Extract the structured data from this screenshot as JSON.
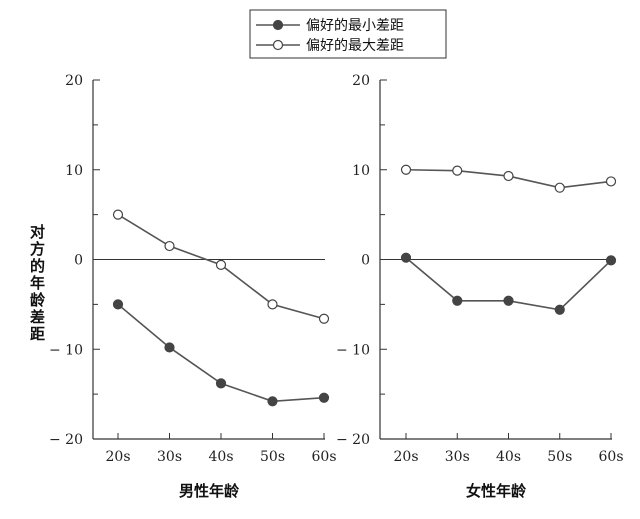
{
  "legend": {
    "min_label": "偏好的最小差距",
    "max_label": "偏好的最大差距"
  },
  "ylabel": "对方的年龄差距",
  "colors": {
    "line": "#555555",
    "marker_fill_filled": "#444444",
    "marker_fill_open": "#ffffff",
    "axis": "#333333"
  },
  "chart_data": [
    {
      "type": "line",
      "xlabel": "男性年龄",
      "ylabel": "对方的年龄差距",
      "categories": [
        "20s",
        "30s",
        "40s",
        "50s",
        "60s"
      ],
      "ylim": [
        -20,
        20
      ],
      "yticks": [
        -20,
        -10,
        0,
        10,
        20
      ],
      "ytick_labels": [
        "− 20",
        "− 10",
        "0",
        "10",
        "20"
      ],
      "series": [
        {
          "name": "偏好的最小差距",
          "marker": "filled",
          "values": [
            -5,
            -9.8,
            -13.8,
            -15.8,
            -15.4
          ]
        },
        {
          "name": "偏好的最大差距",
          "marker": "open",
          "values": [
            5,
            1.5,
            -0.6,
            -5,
            -6.6
          ]
        }
      ]
    },
    {
      "type": "line",
      "xlabel": "女性年龄",
      "ylabel": "对方的年龄差距",
      "categories": [
        "20s",
        "30s",
        "40s",
        "50s",
        "60s"
      ],
      "ylim": [
        -20,
        20
      ],
      "yticks": [
        -20,
        -10,
        0,
        10,
        20
      ],
      "ytick_labels": [
        "− 20",
        "− 10",
        "0",
        "10",
        "20"
      ],
      "series": [
        {
          "name": "偏好的最小差距",
          "marker": "filled",
          "values": [
            0.2,
            -4.6,
            -4.6,
            -5.6,
            -0.1
          ]
        },
        {
          "name": "偏好的最大差距",
          "marker": "open",
          "values": [
            10,
            9.9,
            9.3,
            8,
            8.7
          ]
        }
      ]
    }
  ]
}
